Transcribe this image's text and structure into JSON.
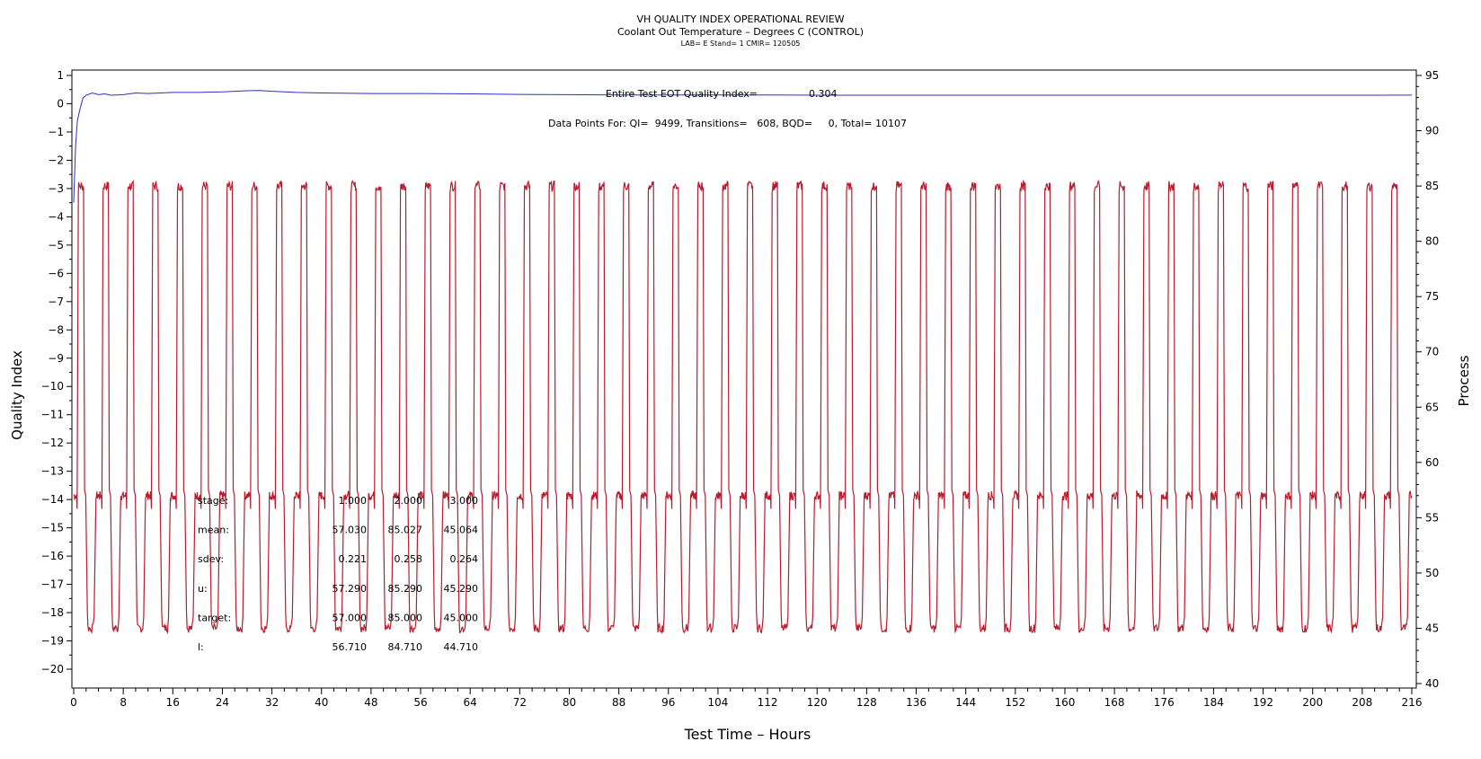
{
  "chart_data": {
    "type": "line",
    "title": "VH QUALITY INDEX OPERATIONAL REVIEW",
    "subtitle": "Coolant Out Temperature – Degrees C (CONTROL)",
    "subtitle2": "LAB= E Stand= 1 CMIR= 120505",
    "xlabel": "Test Time – Hours",
    "ylabel_left": "Quality Index",
    "ylabel_right": "Process",
    "xlim": [
      0,
      216
    ],
    "ylim_left": [
      -20,
      1
    ],
    "ylim_right": [
      40,
      95
    ],
    "x_ticks": [
      0,
      8,
      16,
      24,
      32,
      40,
      48,
      56,
      64,
      72,
      80,
      88,
      96,
      104,
      112,
      120,
      128,
      136,
      144,
      152,
      160,
      168,
      176,
      184,
      192,
      200,
      208,
      216
    ],
    "y_left_ticks": [
      1,
      0,
      -1,
      -2,
      -3,
      -4,
      -5,
      -6,
      -7,
      -8,
      -9,
      -10,
      -11,
      -12,
      -13,
      -14,
      -15,
      -16,
      -17,
      -18,
      -19,
      -20
    ],
    "y_right_ticks": [
      95,
      90,
      85,
      80,
      75,
      70,
      65,
      60,
      55,
      50,
      45,
      40
    ],
    "annotation_qi_label": "Entire Test EOT Quality Index=",
    "annotation_qi_value": "0.304",
    "annotation_points": "Data Points For: QI=  9499, Transitions=   608, BQD=     0, Total= 10107",
    "stats_table": {
      "rows": [
        {
          "label": "stage:",
          "values": [
            "1.000",
            "2.000",
            "3.000"
          ]
        },
        {
          "label": "mean:",
          "values": [
            "57.030",
            "85.027",
            "45.064"
          ]
        },
        {
          "label": "sdev:",
          "values": [
            "0.221",
            "0.258",
            "0.264"
          ]
        },
        {
          "label": "u:",
          "values": [
            "57.290",
            "85.290",
            "45.290"
          ]
        },
        {
          "label": "target:",
          "values": [
            "57.000",
            "85.000",
            "45.000"
          ]
        },
        {
          "label": "l:",
          "values": [
            "56.710",
            "84.710",
            "44.710"
          ]
        }
      ]
    },
    "series": [
      {
        "name": "",
        "axis": "left",
        "color": "#2a2fc8",
        "points": [
          [
            0,
            -3.5
          ],
          [
            0.3,
            -1.5
          ],
          [
            0.6,
            -0.6
          ],
          [
            1,
            -0.2
          ],
          [
            1.5,
            0.2
          ],
          [
            2,
            0.3
          ],
          [
            3,
            0.38
          ],
          [
            4,
            0.32
          ],
          [
            5,
            0.35
          ],
          [
            6,
            0.3
          ],
          [
            8,
            0.32
          ],
          [
            10,
            0.38
          ],
          [
            12,
            0.36
          ],
          [
            16,
            0.4
          ],
          [
            20,
            0.4
          ],
          [
            24,
            0.42
          ],
          [
            28,
            0.46
          ],
          [
            30,
            0.47
          ],
          [
            32,
            0.44
          ],
          [
            36,
            0.4
          ],
          [
            40,
            0.38
          ],
          [
            48,
            0.36
          ],
          [
            56,
            0.36
          ],
          [
            64,
            0.35
          ],
          [
            72,
            0.33
          ],
          [
            80,
            0.32
          ],
          [
            88,
            0.31
          ],
          [
            96,
            0.31
          ],
          [
            104,
            0.31
          ],
          [
            112,
            0.31
          ],
          [
            120,
            0.3
          ],
          [
            128,
            0.3
          ],
          [
            136,
            0.3
          ],
          [
            144,
            0.3
          ],
          [
            152,
            0.3
          ],
          [
            160,
            0.3
          ],
          [
            168,
            0.3
          ],
          [
            176,
            0.3
          ],
          [
            184,
            0.3
          ],
          [
            192,
            0.3
          ],
          [
            200,
            0.3
          ],
          [
            208,
            0.3
          ],
          [
            216,
            0.304
          ]
        ]
      },
      {
        "name": "",
        "axis": "right",
        "color": "#b81c2e",
        "levels": {
          "stage1": 57.0,
          "stage2": 85.0,
          "stage3": 45.0
        },
        "cycle_hours": 4.0,
        "n_cycles": 54,
        "first_cycle_start": 0.0
      }
    ],
    "colors": {
      "frame": "#000000",
      "qi_line": "#2a2fc8",
      "process_line": "#b81c2e"
    }
  }
}
